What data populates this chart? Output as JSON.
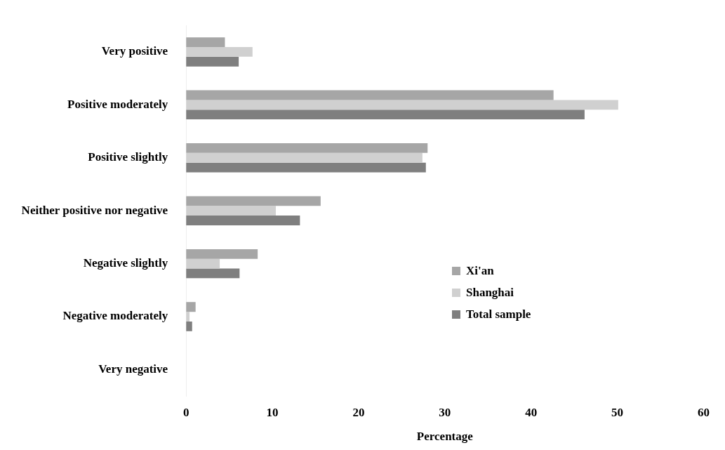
{
  "chart_data": {
    "type": "bar",
    "orientation": "horizontal",
    "xlabel": "Percentage",
    "categories": [
      "Very positive",
      "Positive moderately",
      "Positive slightly",
      "Neither positive nor negative",
      "Negative slightly",
      "Negative moderately",
      "Very negative"
    ],
    "series": [
      {
        "name": "Xi'an",
        "color": "#a6a6a6",
        "values": [
          4.5,
          42.6,
          28.0,
          15.6,
          8.3,
          1.1,
          0
        ]
      },
      {
        "name": "Shanghai",
        "color": "#d0d0d0",
        "values": [
          7.7,
          50.1,
          27.4,
          10.4,
          3.9,
          0.4,
          0
        ]
      },
      {
        "name": "Total sample",
        "color": "#7f7f7f",
        "values": [
          6.1,
          46.2,
          27.8,
          13.2,
          6.2,
          0.7,
          0
        ]
      }
    ],
    "xlim": [
      0,
      60
    ],
    "xticks": [
      0,
      10,
      20,
      30,
      40,
      50,
      60
    ],
    "grid": false,
    "legend": "right"
  }
}
